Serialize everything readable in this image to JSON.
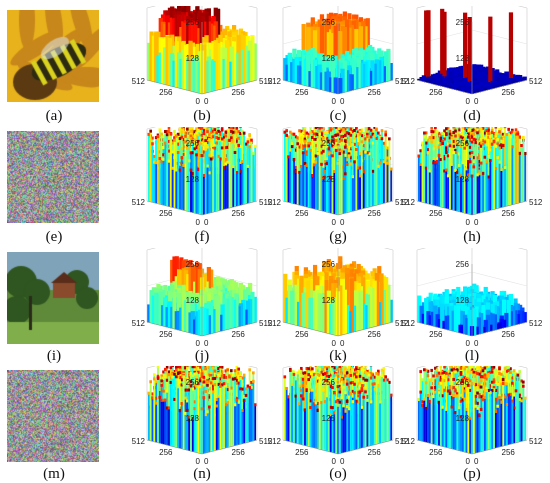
{
  "figure": {
    "ticks": {
      "z_low": "128",
      "z_high": "256",
      "xy_max": "512",
      "xy_mid": "256",
      "origin": "0"
    },
    "photo_kinds": [
      "bee",
      "noise",
      "landscape",
      "noise"
    ],
    "row_styles": [
      [
        "blocks",
        "blocks-flat",
        "spikes"
      ],
      [
        "noise",
        "noise",
        "noise"
      ],
      [
        "terrain",
        "terrain-high",
        "terrain-low"
      ],
      [
        "noise",
        "noise",
        "noise"
      ]
    ],
    "captions": [
      "(a)",
      "(b)",
      "(c)",
      "(d)",
      "(e)",
      "(f)",
      "(g)",
      "(h)",
      "(i)",
      "(j)",
      "(k)",
      "(l)",
      "(m)",
      "(n)",
      "(o)",
      "(p)"
    ],
    "colors": {
      "blue": "#1f3bd6",
      "cyan": "#1fd0e6",
      "yellow": "#f2e22a",
      "red": "#d8231e",
      "bee_yellow": "#e8b21c",
      "bee_dark": "#2d2a12",
      "landscape_sky": "#7fa3b8",
      "landscape_green": "#3f6e2a"
    }
  }
}
